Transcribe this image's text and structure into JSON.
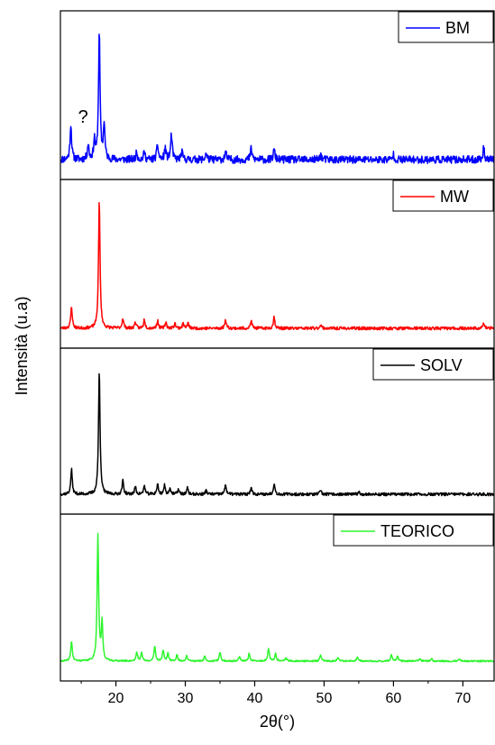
{
  "chart_data": {
    "type": "line",
    "layout": "stacked-panels",
    "xlabel": "2θ(°)",
    "ylabel": "Intensità (u.a)",
    "xlim": [
      12,
      74.5
    ],
    "xticks": [
      20,
      30,
      40,
      50,
      60,
      70
    ],
    "yticks_shown": false,
    "series": [
      {
        "name": "BM",
        "color": "#0000ff",
        "noise": 0.03,
        "seed": 11,
        "peaks": [
          [
            13.5,
            0.28
          ],
          [
            16.0,
            0.12
          ],
          [
            16.9,
            0.15
          ],
          [
            17.6,
            1.0
          ],
          [
            18.3,
            0.28
          ],
          [
            23.0,
            0.06
          ],
          [
            24.1,
            0.06
          ],
          [
            26.0,
            0.12
          ],
          [
            27.1,
            0.09
          ],
          [
            28.0,
            0.2
          ],
          [
            29.5,
            0.06
          ],
          [
            33.0,
            0.05
          ],
          [
            35.8,
            0.06
          ],
          [
            39.5,
            0.09
          ],
          [
            42.8,
            0.08
          ],
          [
            49.5,
            0.04
          ],
          [
            60.0,
            0.04
          ],
          [
            73.0,
            0.09
          ]
        ]
      },
      {
        "name": "MW",
        "color": "#ff0000",
        "noise": 0.012,
        "seed": 23,
        "peaks": [
          [
            13.6,
            0.17
          ],
          [
            17.6,
            1.0
          ],
          [
            21.0,
            0.08
          ],
          [
            22.8,
            0.05
          ],
          [
            24.1,
            0.07
          ],
          [
            26.0,
            0.06
          ],
          [
            27.2,
            0.05
          ],
          [
            28.5,
            0.04
          ],
          [
            29.7,
            0.04
          ],
          [
            30.4,
            0.04
          ],
          [
            35.8,
            0.07
          ],
          [
            39.5,
            0.06
          ],
          [
            42.8,
            0.09
          ],
          [
            49.5,
            0.03
          ],
          [
            73.0,
            0.04
          ]
        ]
      },
      {
        "name": "SOLV",
        "color": "#000000",
        "noise": 0.012,
        "seed": 37,
        "peaks": [
          [
            13.6,
            0.2
          ],
          [
            17.6,
            1.0
          ],
          [
            21.0,
            0.11
          ],
          [
            22.8,
            0.06
          ],
          [
            24.1,
            0.07
          ],
          [
            26.0,
            0.08
          ],
          [
            27.0,
            0.07
          ],
          [
            27.8,
            0.05
          ],
          [
            29.0,
            0.04
          ],
          [
            30.3,
            0.05
          ],
          [
            33.0,
            0.03
          ],
          [
            35.8,
            0.08
          ],
          [
            39.5,
            0.06
          ],
          [
            42.8,
            0.09
          ],
          [
            49.5,
            0.03
          ],
          [
            55.0,
            0.02
          ]
        ]
      },
      {
        "name": "TEORICO",
        "color": "#2ef52e",
        "noise": 0.006,
        "seed": 41,
        "peaks": [
          [
            13.6,
            0.16
          ],
          [
            17.4,
            1.0
          ],
          [
            18.0,
            0.3
          ],
          [
            23.0,
            0.07
          ],
          [
            23.7,
            0.07
          ],
          [
            25.6,
            0.12
          ],
          [
            26.8,
            0.09
          ],
          [
            27.5,
            0.06
          ],
          [
            28.8,
            0.05
          ],
          [
            30.2,
            0.04
          ],
          [
            32.8,
            0.04
          ],
          [
            35.0,
            0.07
          ],
          [
            37.8,
            0.04
          ],
          [
            39.2,
            0.06
          ],
          [
            42.0,
            0.1
          ],
          [
            43.0,
            0.06
          ],
          [
            44.5,
            0.03
          ],
          [
            49.5,
            0.05
          ],
          [
            52.0,
            0.03
          ],
          [
            54.8,
            0.03
          ],
          [
            59.7,
            0.05
          ],
          [
            60.6,
            0.04
          ],
          [
            63.8,
            0.02
          ],
          [
            65.5,
            0.02
          ],
          [
            69.5,
            0.02
          ]
        ]
      }
    ],
    "annotations": [
      {
        "panel": "BM",
        "text": "?",
        "x": 15.8
      }
    ]
  }
}
